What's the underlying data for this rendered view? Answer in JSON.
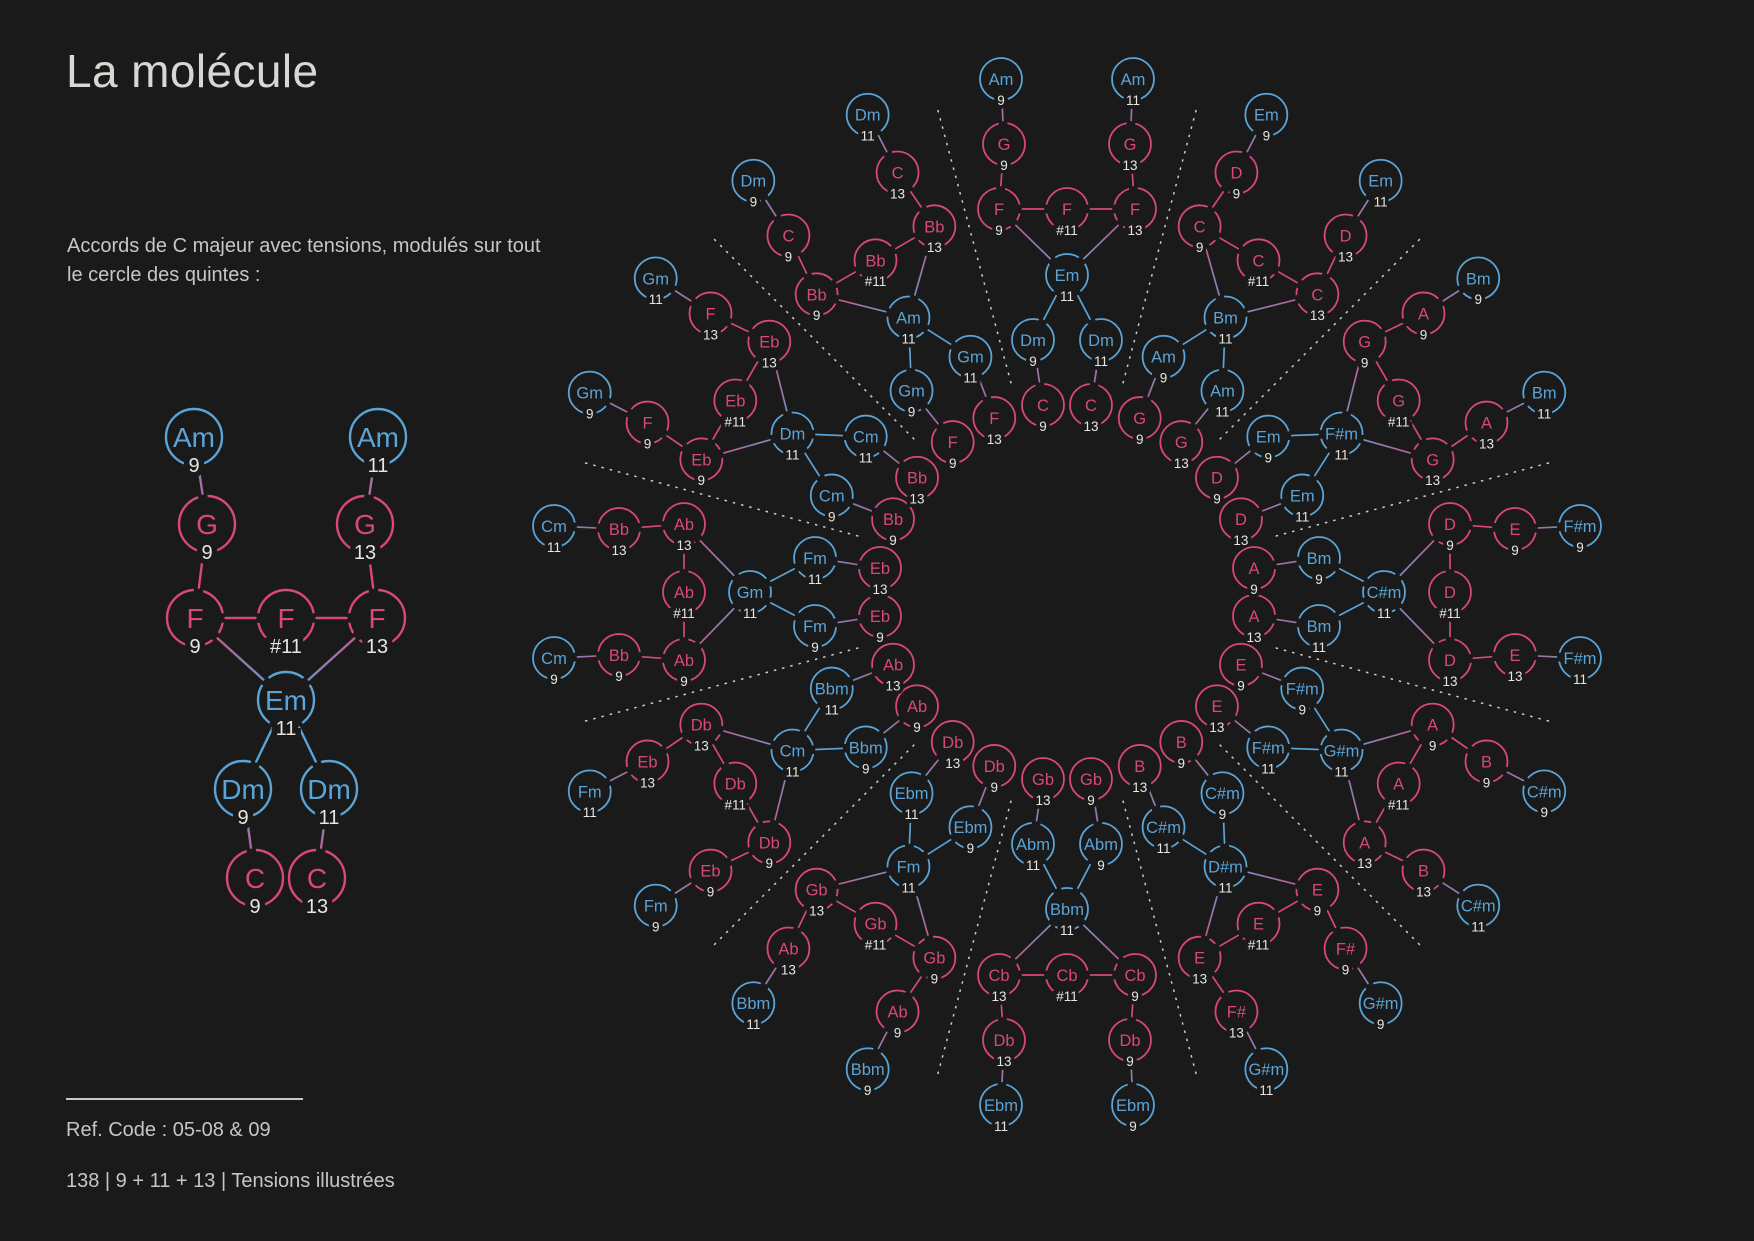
{
  "page": {
    "title": "La molécule",
    "subtitle": [
      "Accords de C majeur avec tensions, modulés sur tout",
      "le cercle des quintes :"
    ],
    "footer": {
      "ref_code": "Ref. Code : 05-08 & 09",
      "info": "138 | 9 + 11 + 13 | Tensions illustrées"
    }
  },
  "colors": {
    "background": "#1a1a1a",
    "major_chord": "#d9477c",
    "minor_chord": "#5aa4d7",
    "tension_text": "#e8e6e2",
    "separator_dash": "#cdcdcd"
  },
  "molecule_template": {
    "slots": [
      {
        "id": "vi9",
        "degree": "vi",
        "tension": "9",
        "quality": "minor"
      },
      {
        "id": "vi11",
        "degree": "vi",
        "tension": "11",
        "quality": "minor"
      },
      {
        "id": "V9",
        "degree": "V",
        "tension": "9",
        "quality": "major"
      },
      {
        "id": "V13",
        "degree": "V",
        "tension": "13",
        "quality": "major"
      },
      {
        "id": "IV9",
        "degree": "IV",
        "tension": "9",
        "quality": "major"
      },
      {
        "id": "IV#11",
        "degree": "IV",
        "tension": "#11",
        "quality": "major"
      },
      {
        "id": "IV13",
        "degree": "IV",
        "tension": "13",
        "quality": "major"
      },
      {
        "id": "iii11",
        "degree": "iii",
        "tension": "11",
        "quality": "minor"
      },
      {
        "id": "ii9",
        "degree": "ii",
        "tension": "9",
        "quality": "minor"
      },
      {
        "id": "ii11",
        "degree": "ii",
        "tension": "11",
        "quality": "minor"
      },
      {
        "id": "I9",
        "degree": "I",
        "tension": "9",
        "quality": "major"
      },
      {
        "id": "I13",
        "degree": "I",
        "tension": "13",
        "quality": "major"
      }
    ],
    "bonds": [
      [
        "vi9",
        "V9"
      ],
      [
        "V9",
        "IV9"
      ],
      [
        "vi11",
        "V13"
      ],
      [
        "V13",
        "IV13"
      ],
      [
        "IV9",
        "IV#11"
      ],
      [
        "IV#11",
        "IV13"
      ],
      [
        "IV9",
        "iii11"
      ],
      [
        "IV13",
        "iii11"
      ],
      [
        "iii11",
        "ii9"
      ],
      [
        "iii11",
        "ii11"
      ],
      [
        "ii9",
        "I9"
      ],
      [
        "ii11",
        "I13"
      ]
    ]
  },
  "example_molecule": {
    "key": "C",
    "chords": {
      "I": "C",
      "ii": "Dm",
      "iii": "Em",
      "IV": "F",
      "V": "G",
      "vi": "Am"
    }
  },
  "circle_of_fifths": [
    {
      "key": "C",
      "chords": {
        "I": "C",
        "ii": "Dm",
        "iii": "Em",
        "IV": "F",
        "V": "G",
        "vi": "Am"
      }
    },
    {
      "key": "G",
      "chords": {
        "I": "G",
        "ii": "Am",
        "iii": "Bm",
        "IV": "C",
        "V": "D",
        "vi": "Em"
      }
    },
    {
      "key": "D",
      "chords": {
        "I": "D",
        "ii": "Em",
        "iii": "F#m",
        "IV": "G",
        "V": "A",
        "vi": "Bm"
      }
    },
    {
      "key": "A",
      "chords": {
        "I": "A",
        "ii": "Bm",
        "iii": "C#m",
        "IV": "D",
        "V": "E",
        "vi": "F#m"
      }
    },
    {
      "key": "E",
      "chords": {
        "I": "E",
        "ii": "F#m",
        "iii": "G#m",
        "IV": "A",
        "V": "B",
        "vi": "C#m"
      }
    },
    {
      "key": "B",
      "chords": {
        "I": "B",
        "ii": "C#m",
        "iii": "D#m",
        "IV": "E",
        "V": "F#",
        "vi": "G#m"
      }
    },
    {
      "key": "Gb",
      "chords": {
        "I": "Gb",
        "ii": "Abm",
        "iii": "Bbm",
        "IV": "Cb",
        "V": "Db",
        "vi": "Ebm"
      }
    },
    {
      "key": "Db",
      "chords": {
        "I": "Db",
        "ii": "Ebm",
        "iii": "Fm",
        "IV": "Gb",
        "V": "Ab",
        "vi": "Bbm"
      }
    },
    {
      "key": "Ab",
      "chords": {
        "I": "Ab",
        "ii": "Bbm",
        "iii": "Cm",
        "IV": "Db",
        "V": "Eb",
        "vi": "Fm"
      }
    },
    {
      "key": "Eb",
      "chords": {
        "I": "Eb",
        "ii": "Fm",
        "iii": "Gm",
        "IV": "Ab",
        "V": "Bb",
        "vi": "Cm"
      }
    },
    {
      "key": "Bb",
      "chords": {
        "I": "Bb",
        "ii": "Cm",
        "iii": "Dm",
        "IV": "Eb",
        "V": "F",
        "vi": "Gm"
      }
    },
    {
      "key": "F",
      "chords": {
        "I": "F",
        "ii": "Gm",
        "iii": "Am",
        "IV": "Bb",
        "V": "C",
        "vi": "Dm"
      }
    }
  ]
}
